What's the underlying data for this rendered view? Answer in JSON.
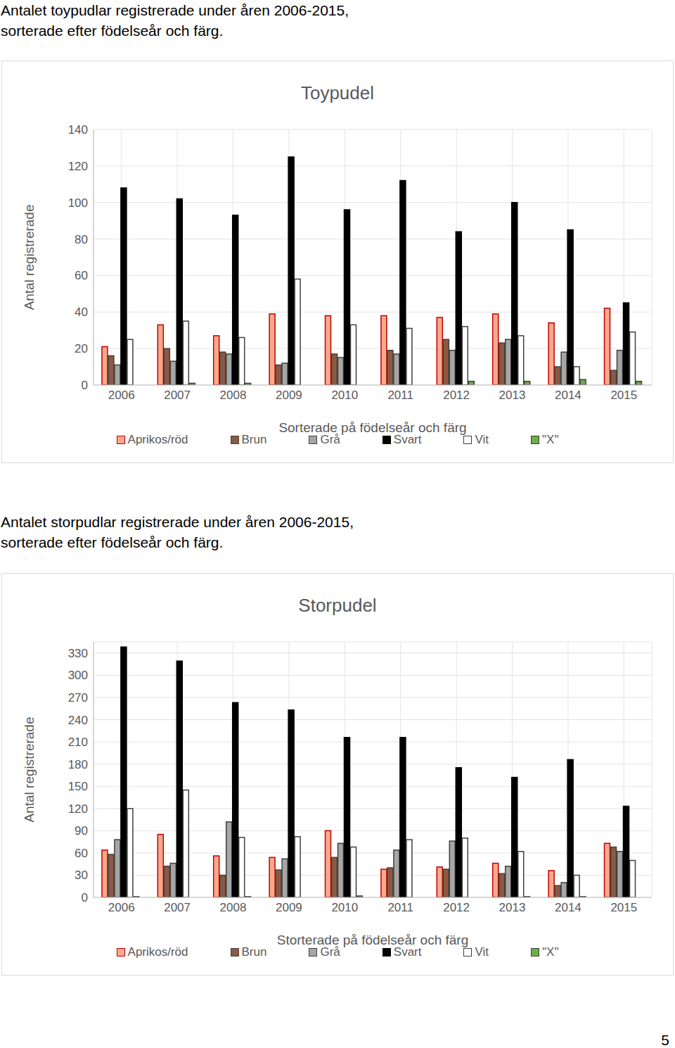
{
  "chart_data": [
    {
      "type": "bar",
      "title": "Toypudel",
      "x_label": "Sorterade på födelseår och färg",
      "y_label": "Antal registrerade",
      "categories": [
        "2006",
        "2007",
        "2008",
        "2009",
        "2010",
        "2011",
        "2012",
        "2013",
        "2014",
        "2015"
      ],
      "series": [
        {
          "name": "Aprikos/röd",
          "color": "#f8a98b",
          "values": [
            21,
            33,
            27,
            39,
            38,
            38,
            37,
            39,
            34,
            42
          ]
        },
        {
          "name": "Brun",
          "color": "#8c5a40",
          "values": [
            16,
            20,
            18,
            11,
            17,
            19,
            25,
            23,
            10,
            8
          ]
        },
        {
          "name": "Grå",
          "color": "#a6a6a6",
          "values": [
            11,
            13,
            17,
            12,
            15,
            17,
            19,
            25,
            18,
            19
          ]
        },
        {
          "name": "Svart",
          "color": "#000000",
          "values": [
            108,
            102,
            93,
            125,
            96,
            112,
            84,
            100,
            85,
            45
          ]
        },
        {
          "name": "Vit",
          "color": "#ffffff",
          "values": [
            25,
            35,
            26,
            58,
            33,
            31,
            32,
            27,
            10,
            29
          ]
        },
        {
          "name": "\"X\"",
          "color": "#70ad47",
          "values": [
            0,
            1,
            1,
            0,
            0,
            0,
            2,
            2,
            3,
            2
          ]
        }
      ],
      "ylim": [
        0,
        140
      ],
      "yticks": [
        0,
        20,
        40,
        60,
        80,
        100,
        120,
        140
      ],
      "grid": true,
      "legend": "bottom"
    },
    {
      "type": "bar",
      "title": "Storpudel",
      "x_label": "Storterade på födelseår och färg",
      "y_label": "Antal registrerade",
      "categories": [
        "2006",
        "2007",
        "2008",
        "2009",
        "2010",
        "2011",
        "2012",
        "2013",
        "2014",
        "2015"
      ],
      "series": [
        {
          "name": "Aprikos/röd",
          "color": "#f8a98b",
          "values": [
            64,
            85,
            56,
            54,
            90,
            38,
            41,
            46,
            36,
            73
          ]
        },
        {
          "name": "Brun",
          "color": "#8c5a40",
          "values": [
            58,
            42,
            30,
            37,
            54,
            40,
            38,
            32,
            16,
            68
          ]
        },
        {
          "name": "Grå",
          "color": "#a6a6a6",
          "values": [
            78,
            46,
            102,
            52,
            73,
            64,
            76,
            42,
            20,
            62
          ]
        },
        {
          "name": "Svart",
          "color": "#000000",
          "values": [
            338,
            319,
            263,
            253,
            216,
            216,
            175,
            162,
            186,
            123
          ]
        },
        {
          "name": "Vit",
          "color": "#ffffff",
          "values": [
            120,
            145,
            81,
            82,
            68,
            78,
            80,
            62,
            30,
            50
          ]
        },
        {
          "name": "\"X\"",
          "color": "#70ad47",
          "values": [
            1,
            0,
            1,
            0,
            2,
            0,
            0,
            1,
            1,
            0
          ]
        }
      ],
      "ylim": [
        0,
        345
      ],
      "yticks": [
        0,
        30,
        60,
        90,
        120,
        150,
        180,
        210,
        240,
        270,
        300,
        330
      ],
      "grid": true,
      "legend": "bottom"
    }
  ],
  "captions": [
    [
      "Antalet toypudlar registrerade under åren 2006-2015,",
      "sorterade efter födelseår och färg."
    ],
    [
      "Antalet storpudlar registrerade under åren 2006-2015,",
      "sorterade efter födelseår och färg."
    ]
  ],
  "page_number": "5"
}
